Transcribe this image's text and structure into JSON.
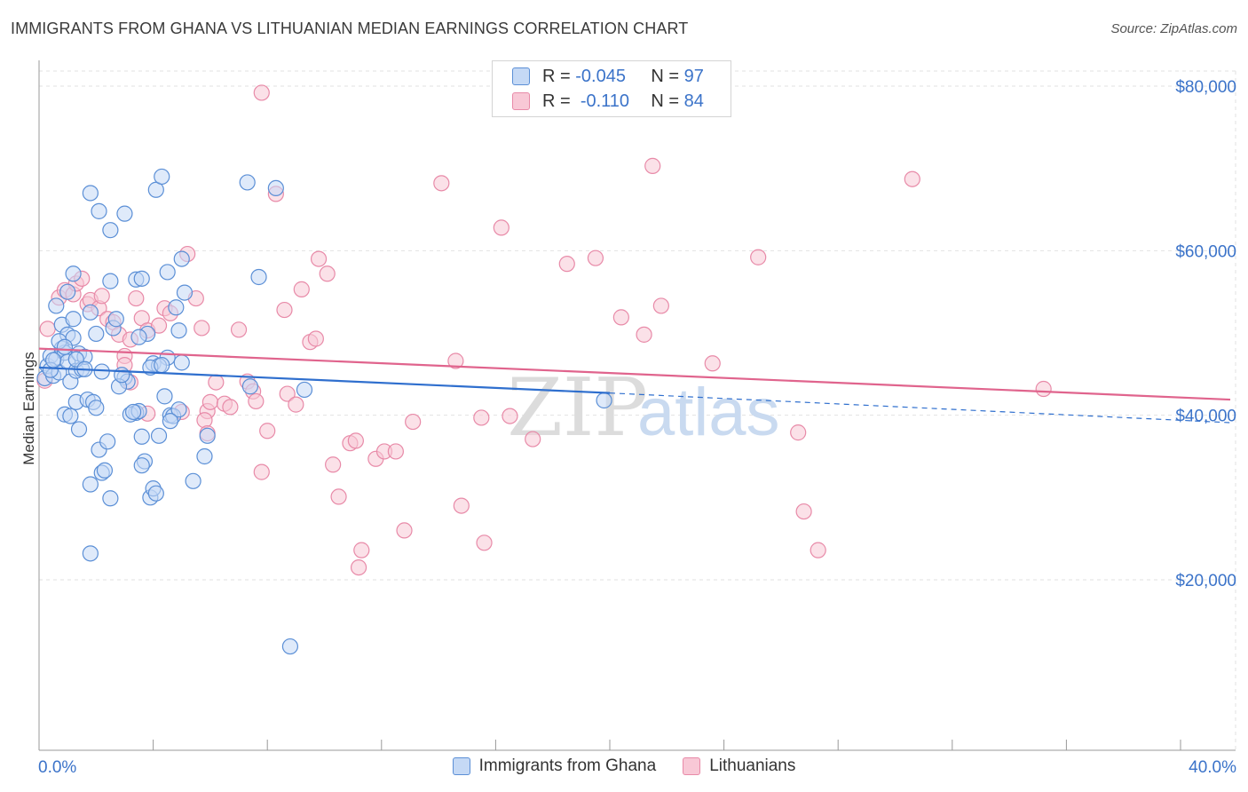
{
  "title": "IMMIGRANTS FROM GHANA VS LITHUANIAN MEDIAN EARNINGS CORRELATION CHART",
  "source": "Source: ZipAtlas.com",
  "watermark": {
    "zip": "ZIP",
    "atlas": "atlas"
  },
  "legend": {
    "rows": [
      {
        "r_label": "R =",
        "r_value": "-0.045",
        "n_label": "N =",
        "n_value": "97"
      },
      {
        "r_label": "R =",
        "r_value": "-0.110",
        "n_label": "N =",
        "n_value": "84"
      }
    ]
  },
  "colors": {
    "ghana_fill": "#c5d9f5",
    "ghana_stroke": "#5b8fd6",
    "ghana_line": "#2f6fce",
    "lith_fill": "#f8c8d6",
    "lith_stroke": "#e88aa8",
    "lith_line": "#e0648d",
    "axis_text": "#3b73c9",
    "grid": "#e2e2e2"
  },
  "chart_data": {
    "type": "scatter",
    "title": "IMMIGRANTS FROM GHANA VS LITHUANIAN MEDIAN EARNINGS CORRELATION CHART",
    "xlabel": "",
    "ylabel": "Median Earnings",
    "xlim": [
      0,
      40
    ],
    "ylim": [
      0,
      85000
    ],
    "x_tick_labels": [
      "0.0%",
      "40.0%"
    ],
    "y_ticks": [
      20000,
      40000,
      60000,
      80000
    ],
    "y_tick_labels": [
      "$20,000",
      "$40,000",
      "$60,000",
      "$80,000"
    ],
    "grid": true,
    "legend_position": "top-center",
    "series": [
      {
        "name": "Immigrants from Ghana",
        "R": -0.045,
        "N": 97,
        "trend": {
          "x0": 0,
          "y0": 45800,
          "x1": 20,
          "y1": 42700,
          "dash_x1": 40,
          "dash_y1": 39100
        },
        "points": [
          [
            0.2,
            44500
          ],
          [
            0.3,
            46000
          ],
          [
            0.4,
            47200
          ],
          [
            0.5,
            44800
          ],
          [
            0.6,
            46800
          ],
          [
            0.7,
            45200
          ],
          [
            0.8,
            48100
          ],
          [
            0.9,
            47600
          ],
          [
            1.0,
            46500
          ],
          [
            0.6,
            53300
          ],
          [
            0.8,
            51000
          ],
          [
            1.0,
            49800
          ],
          [
            1.2,
            49400
          ],
          [
            1.1,
            44100
          ],
          [
            1.3,
            45400
          ],
          [
            1.4,
            47500
          ],
          [
            1.5,
            45600
          ],
          [
            1.6,
            47100
          ],
          [
            0.9,
            40100
          ],
          [
            1.1,
            39900
          ],
          [
            1.3,
            41600
          ],
          [
            1.4,
            38300
          ],
          [
            1.7,
            41900
          ],
          [
            1.9,
            41600
          ],
          [
            2.0,
            40900
          ],
          [
            2.2,
            45300
          ],
          [
            1.8,
            31600
          ],
          [
            2.1,
            35800
          ],
          [
            2.2,
            33000
          ],
          [
            2.3,
            33300
          ],
          [
            2.4,
            36800
          ],
          [
            2.5,
            29900
          ],
          [
            1.8,
            23200
          ],
          [
            1.2,
            51700
          ],
          [
            1.8,
            52500
          ],
          [
            2.6,
            50600
          ],
          [
            2.0,
            49900
          ],
          [
            2.5,
            56300
          ],
          [
            3.0,
            44600
          ],
          [
            3.1,
            44100
          ],
          [
            2.8,
            43500
          ],
          [
            3.4,
            40300
          ],
          [
            3.2,
            40100
          ],
          [
            3.5,
            40500
          ],
          [
            3.6,
            37400
          ],
          [
            3.7,
            34400
          ],
          [
            3.9,
            30000
          ],
          [
            3.6,
            33900
          ],
          [
            4.0,
            31100
          ],
          [
            4.1,
            30500
          ],
          [
            4.2,
            37500
          ],
          [
            4.4,
            42300
          ],
          [
            4.6,
            40000
          ],
          [
            4.7,
            39900
          ],
          [
            4.9,
            40700
          ],
          [
            5.0,
            46400
          ],
          [
            4.9,
            50300
          ],
          [
            4.5,
            47000
          ],
          [
            3.8,
            49900
          ],
          [
            3.5,
            49500
          ],
          [
            4.0,
            46300
          ],
          [
            4.2,
            46000
          ],
          [
            4.8,
            53100
          ],
          [
            5.1,
            54900
          ],
          [
            5.0,
            59000
          ],
          [
            4.5,
            57400
          ],
          [
            3.4,
            56500
          ],
          [
            3.6,
            56600
          ],
          [
            4.1,
            67400
          ],
          [
            4.3,
            69000
          ],
          [
            3.0,
            64500
          ],
          [
            2.5,
            62500
          ],
          [
            2.1,
            64800
          ],
          [
            1.8,
            67000
          ],
          [
            1.2,
            57200
          ],
          [
            1.0,
            55000
          ],
          [
            1.3,
            46800
          ],
          [
            1.6,
            45600
          ],
          [
            5.4,
            32000
          ],
          [
            5.9,
            37500
          ],
          [
            5.8,
            35000
          ],
          [
            7.4,
            43500
          ],
          [
            7.7,
            56800
          ],
          [
            7.3,
            68300
          ],
          [
            8.3,
            67600
          ],
          [
            9.3,
            43100
          ],
          [
            8.8,
            11900
          ],
          [
            19.8,
            41800
          ],
          [
            0.4,
            45500
          ],
          [
            0.5,
            46700
          ],
          [
            0.7,
            49000
          ],
          [
            0.9,
            48300
          ],
          [
            2.7,
            51700
          ],
          [
            3.9,
            45800
          ],
          [
            4.3,
            46100
          ],
          [
            2.9,
            44900
          ],
          [
            3.3,
            40400
          ],
          [
            4.6,
            39300
          ]
        ]
      },
      {
        "name": "Lithuanians",
        "R": -0.11,
        "N": 84,
        "trend": {
          "x0": 0,
          "y0": 48100,
          "x1": 40,
          "y1": 41900
        },
        "points": [
          [
            0.3,
            50500
          ],
          [
            0.2,
            44200
          ],
          [
            0.7,
            54300
          ],
          [
            0.9,
            55200
          ],
          [
            1.2,
            54700
          ],
          [
            1.3,
            56000
          ],
          [
            1.5,
            56600
          ],
          [
            1.7,
            53500
          ],
          [
            1.8,
            54000
          ],
          [
            2.1,
            53000
          ],
          [
            2.2,
            54500
          ],
          [
            2.4,
            51700
          ],
          [
            2.6,
            51300
          ],
          [
            2.8,
            49800
          ],
          [
            3.0,
            47200
          ],
          [
            3.2,
            49200
          ],
          [
            3.4,
            54200
          ],
          [
            3.6,
            51800
          ],
          [
            3.8,
            50300
          ],
          [
            4.2,
            50900
          ],
          [
            4.4,
            53000
          ],
          [
            4.6,
            52400
          ],
          [
            5.2,
            59600
          ],
          [
            5.5,
            54200
          ],
          [
            5.7,
            50600
          ],
          [
            5.9,
            40500
          ],
          [
            6.0,
            41600
          ],
          [
            3.0,
            46100
          ],
          [
            3.2,
            44000
          ],
          [
            3.8,
            40200
          ],
          [
            5.0,
            40400
          ],
          [
            5.8,
            39400
          ],
          [
            5.9,
            37800
          ],
          [
            6.2,
            44000
          ],
          [
            6.5,
            41400
          ],
          [
            6.7,
            41000
          ],
          [
            7.0,
            50400
          ],
          [
            7.3,
            44100
          ],
          [
            7.5,
            42900
          ],
          [
            7.6,
            41700
          ],
          [
            7.8,
            33100
          ],
          [
            8.3,
            66900
          ],
          [
            8.0,
            38100
          ],
          [
            8.6,
            52800
          ],
          [
            8.7,
            42600
          ],
          [
            9.0,
            41300
          ],
          [
            9.2,
            55300
          ],
          [
            9.5,
            48900
          ],
          [
            9.7,
            49300
          ],
          [
            9.8,
            59000
          ],
          [
            10.1,
            57200
          ],
          [
            10.3,
            34000
          ],
          [
            10.5,
            30100
          ],
          [
            10.9,
            36600
          ],
          [
            11.1,
            36900
          ],
          [
            11.3,
            23600
          ],
          [
            11.2,
            21500
          ],
          [
            11.8,
            34700
          ],
          [
            12.1,
            35600
          ],
          [
            12.5,
            35600
          ],
          [
            12.8,
            26000
          ],
          [
            13.1,
            39200
          ],
          [
            14.1,
            68200
          ],
          [
            14.6,
            46600
          ],
          [
            14.8,
            29000
          ],
          [
            15.5,
            39700
          ],
          [
            15.6,
            24500
          ],
          [
            16.2,
            62800
          ],
          [
            16.5,
            39900
          ],
          [
            17.3,
            37100
          ],
          [
            18.5,
            58400
          ],
          [
            19.5,
            59100
          ],
          [
            20.4,
            51900
          ],
          [
            21.2,
            49800
          ],
          [
            21.5,
            70300
          ],
          [
            21.8,
            53300
          ],
          [
            23.6,
            46300
          ],
          [
            25.2,
            59200
          ],
          [
            26.6,
            37900
          ],
          [
            26.8,
            28300
          ],
          [
            27.3,
            23600
          ],
          [
            30.6,
            68700
          ],
          [
            35.2,
            43200
          ],
          [
            7.8,
            79200
          ]
        ]
      }
    ]
  },
  "bottom_legend": [
    "Immigrants from Ghana",
    "Lithuanians"
  ]
}
